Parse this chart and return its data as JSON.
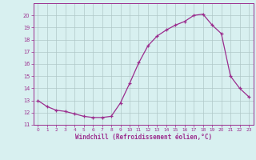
{
  "x": [
    0,
    1,
    2,
    3,
    4,
    5,
    6,
    7,
    8,
    9,
    10,
    11,
    12,
    13,
    14,
    15,
    16,
    17,
    18,
    19,
    20,
    21,
    22,
    23
  ],
  "y": [
    13.0,
    12.5,
    12.2,
    12.1,
    11.9,
    11.7,
    11.6,
    11.6,
    11.7,
    12.8,
    14.4,
    16.1,
    17.5,
    18.3,
    18.8,
    19.2,
    19.5,
    20.0,
    20.1,
    19.2,
    18.5,
    15.0,
    14.0,
    13.3
  ],
  "line_color": "#9b2d8e",
  "marker": "+",
  "marker_size": 3,
  "bg_color": "#d8f0f0",
  "grid_color": "#b0c8c8",
  "xlabel": "Windchill (Refroidissement éolien,°C)",
  "xlabel_color": "#9b2d8e",
  "tick_color": "#9b2d8e",
  "ylim": [
    11,
    21
  ],
  "xlim": [
    -0.5,
    23.5
  ],
  "yticks": [
    11,
    12,
    13,
    14,
    15,
    16,
    17,
    18,
    19,
    20
  ],
  "xticks": [
    0,
    1,
    2,
    3,
    4,
    5,
    6,
    7,
    8,
    9,
    10,
    11,
    12,
    13,
    14,
    15,
    16,
    17,
    18,
    19,
    20,
    21,
    22,
    23
  ],
  "spine_color": "#9b2d8e"
}
